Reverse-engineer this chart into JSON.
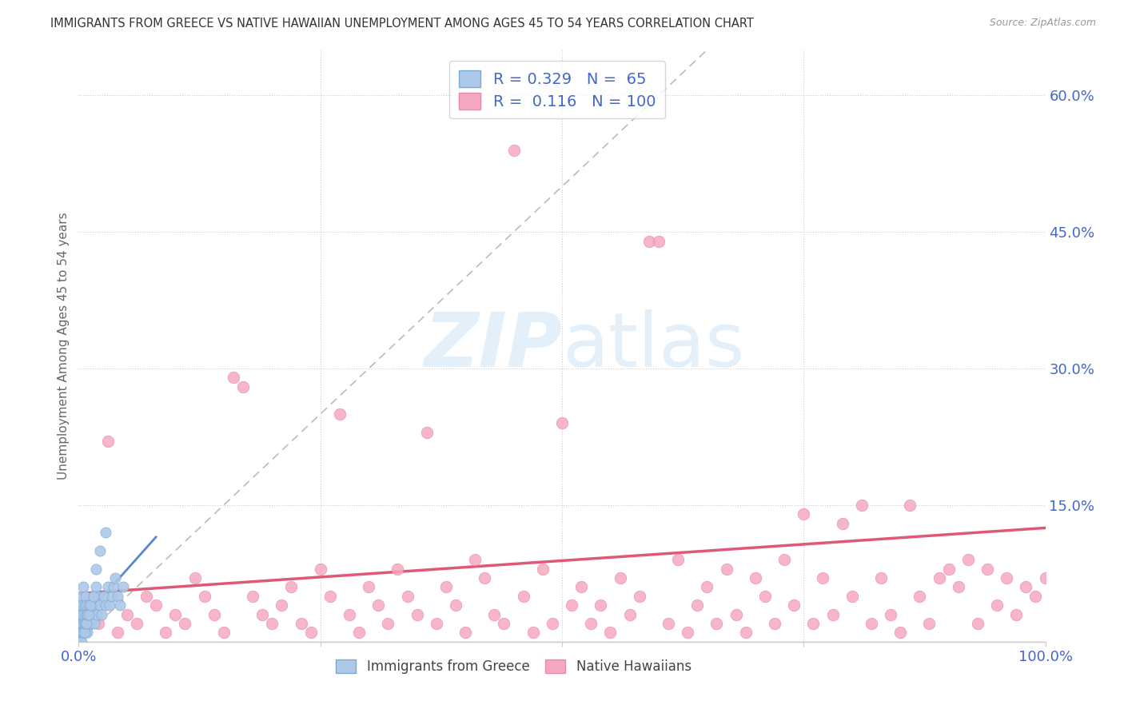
{
  "title": "IMMIGRANTS FROM GREECE VS NATIVE HAWAIIAN UNEMPLOYMENT AMONG AGES 45 TO 54 YEARS CORRELATION CHART",
  "source": "Source: ZipAtlas.com",
  "ylabel": "Unemployment Among Ages 45 to 54 years",
  "xlim": [
    0,
    1.0
  ],
  "ylim": [
    0,
    0.65
  ],
  "legend_r_blue": "0.329",
  "legend_n_blue": "65",
  "legend_r_pink": "0.116",
  "legend_n_pink": "100",
  "blue_color": "#adc8e8",
  "pink_color": "#f5a8c0",
  "blue_edge_color": "#7aaad0",
  "pink_edge_color": "#e88aaa",
  "blue_line_color": "#5588cc",
  "pink_line_color": "#e05878",
  "diag_color": "#bbbbbb",
  "watermark_color": "#d8eaf8",
  "background_color": "#ffffff",
  "grid_color": "#cccccc",
  "tick_color": "#4466cc",
  "title_color": "#333333",
  "source_color": "#999999",
  "ylabel_color": "#666666",
  "blue_x": [
    0.001,
    0.001,
    0.002,
    0.002,
    0.002,
    0.003,
    0.003,
    0.003,
    0.003,
    0.004,
    0.004,
    0.004,
    0.005,
    0.005,
    0.005,
    0.005,
    0.006,
    0.006,
    0.006,
    0.007,
    0.007,
    0.007,
    0.008,
    0.008,
    0.009,
    0.009,
    0.01,
    0.01,
    0.011,
    0.012,
    0.013,
    0.014,
    0.015,
    0.016,
    0.017,
    0.018,
    0.019,
    0.02,
    0.022,
    0.024,
    0.026,
    0.028,
    0.03,
    0.032,
    0.034,
    0.036,
    0.038,
    0.04,
    0.043,
    0.046,
    0.001,
    0.002,
    0.003,
    0.004,
    0.005,
    0.006,
    0.007,
    0.008,
    0.009,
    0.01,
    0.012,
    0.015,
    0.018,
    0.022,
    0.028
  ],
  "blue_y": [
    0.01,
    0.02,
    0.01,
    0.03,
    0.04,
    0.01,
    0.02,
    0.03,
    0.05,
    0.01,
    0.02,
    0.04,
    0.01,
    0.02,
    0.03,
    0.06,
    0.01,
    0.02,
    0.04,
    0.01,
    0.03,
    0.05,
    0.02,
    0.04,
    0.01,
    0.03,
    0.02,
    0.04,
    0.03,
    0.02,
    0.04,
    0.03,
    0.05,
    0.02,
    0.04,
    0.06,
    0.03,
    0.05,
    0.04,
    0.03,
    0.05,
    0.04,
    0.06,
    0.04,
    0.05,
    0.06,
    0.07,
    0.05,
    0.04,
    0.06,
    0.0,
    0.0,
    0.0,
    0.01,
    0.01,
    0.01,
    0.02,
    0.02,
    0.03,
    0.03,
    0.04,
    0.05,
    0.08,
    0.1,
    0.12
  ],
  "pink_x": [
    0.01,
    0.02,
    0.03,
    0.04,
    0.05,
    0.06,
    0.07,
    0.08,
    0.09,
    0.1,
    0.11,
    0.12,
    0.13,
    0.14,
    0.15,
    0.16,
    0.17,
    0.18,
    0.19,
    0.2,
    0.21,
    0.22,
    0.23,
    0.24,
    0.25,
    0.26,
    0.27,
    0.28,
    0.29,
    0.3,
    0.31,
    0.32,
    0.33,
    0.34,
    0.35,
    0.36,
    0.37,
    0.38,
    0.39,
    0.4,
    0.41,
    0.42,
    0.43,
    0.44,
    0.45,
    0.46,
    0.47,
    0.48,
    0.49,
    0.5,
    0.51,
    0.52,
    0.53,
    0.54,
    0.55,
    0.56,
    0.57,
    0.58,
    0.59,
    0.6,
    0.61,
    0.62,
    0.63,
    0.64,
    0.65,
    0.66,
    0.67,
    0.68,
    0.69,
    0.7,
    0.71,
    0.72,
    0.73,
    0.74,
    0.75,
    0.76,
    0.77,
    0.78,
    0.79,
    0.8,
    0.81,
    0.82,
    0.83,
    0.84,
    0.85,
    0.86,
    0.87,
    0.88,
    0.89,
    0.9,
    0.91,
    0.92,
    0.93,
    0.94,
    0.95,
    0.96,
    0.97,
    0.98,
    0.99,
    1.0
  ],
  "pink_y": [
    0.04,
    0.02,
    0.22,
    0.01,
    0.03,
    0.02,
    0.05,
    0.04,
    0.01,
    0.03,
    0.02,
    0.07,
    0.05,
    0.03,
    0.01,
    0.29,
    0.28,
    0.05,
    0.03,
    0.02,
    0.04,
    0.06,
    0.02,
    0.01,
    0.08,
    0.05,
    0.25,
    0.03,
    0.01,
    0.06,
    0.04,
    0.02,
    0.08,
    0.05,
    0.03,
    0.23,
    0.02,
    0.06,
    0.04,
    0.01,
    0.09,
    0.07,
    0.03,
    0.02,
    0.54,
    0.05,
    0.01,
    0.08,
    0.02,
    0.24,
    0.04,
    0.06,
    0.02,
    0.04,
    0.01,
    0.07,
    0.03,
    0.05,
    0.44,
    0.44,
    0.02,
    0.09,
    0.01,
    0.04,
    0.06,
    0.02,
    0.08,
    0.03,
    0.01,
    0.07,
    0.05,
    0.02,
    0.09,
    0.04,
    0.14,
    0.02,
    0.07,
    0.03,
    0.13,
    0.05,
    0.15,
    0.02,
    0.07,
    0.03,
    0.01,
    0.15,
    0.05,
    0.02,
    0.07,
    0.08,
    0.06,
    0.09,
    0.02,
    0.08,
    0.04,
    0.07,
    0.03,
    0.06,
    0.05,
    0.07
  ],
  "pink_line_x0": 0.0,
  "pink_line_x1": 1.0,
  "pink_line_y0": 0.053,
  "pink_line_y1": 0.125,
  "blue_line_x0": 0.0,
  "blue_line_x1": 0.08,
  "blue_line_y0": 0.02,
  "blue_line_y1": 0.115
}
